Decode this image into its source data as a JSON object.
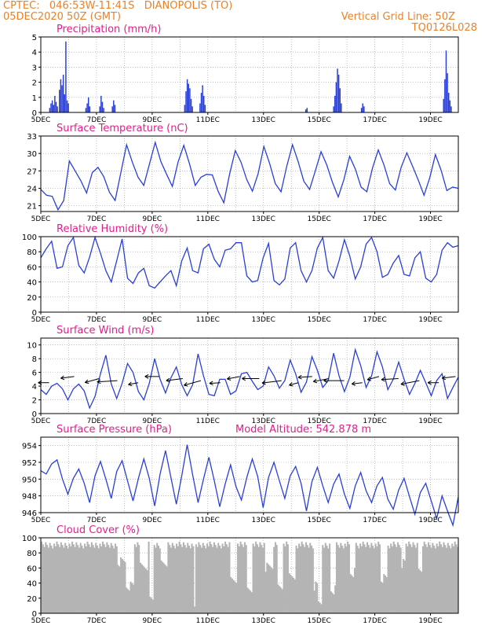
{
  "header": {
    "left_line1": "CPTEC:   046:53W-11:41S   DIANOPOLIS (TO)",
    "left_line2": "05DEC2020 50Z (GMT)",
    "right_line1": "Vertical Grid Line: 50Z",
    "right_line2": "TQ0126L028"
  },
  "colors": {
    "line": "#2a3fd6",
    "bar": "#2a3fd6",
    "cloud": "#b4b4b4",
    "title": "#e0208a",
    "header": "#e8822a"
  },
  "chart_data": [
    {
      "type": "bar",
      "title": "Precipitation (mm/h)",
      "ylim": [
        0,
        5
      ],
      "yticks": [
        0,
        1,
        2,
        3,
        4,
        5
      ],
      "xticks": [
        "5DEC",
        "7DEC",
        "9DEC",
        "11DEC",
        "13DEC",
        "15DEC",
        "17DEC",
        "19DEC"
      ],
      "x_start_day": 5,
      "x_end_day": 20,
      "events": [
        {
          "day": 5.3,
          "values": [
            0.3,
            0.6,
            0.8,
            0.5,
            1.1,
            0.7,
            0.4
          ]
        },
        {
          "day": 5.65,
          "values": [
            1.5,
            2.2,
            1.8,
            2.5,
            1.2,
            4.7,
            0.8,
            0.6
          ]
        },
        {
          "day": 6.6,
          "values": [
            0.3,
            0.6,
            1.0,
            0.4
          ]
        },
        {
          "day": 7.1,
          "values": [
            0.4,
            1.1,
            0.7,
            0.3
          ]
        },
        {
          "day": 7.55,
          "values": [
            0.4,
            0.8,
            0.5
          ]
        },
        {
          "day": 10.15,
          "values": [
            0.5,
            1.4,
            2.2,
            1.9,
            1.6,
            0.9,
            0.4
          ]
        },
        {
          "day": 10.7,
          "values": [
            0.6,
            1.3,
            1.8,
            1.1,
            0.5
          ]
        },
        {
          "day": 14.5,
          "values": [
            0.2,
            0.3
          ]
        },
        {
          "day": 15.5,
          "values": [
            0.4,
            1.1,
            2.0,
            2.9,
            2.5,
            1.6,
            0.6
          ]
        },
        {
          "day": 16.5,
          "values": [
            0.3,
            0.6,
            0.4
          ]
        },
        {
          "day": 19.45,
          "values": [
            0.9,
            2.2,
            4.1,
            2.6,
            1.3,
            0.8,
            0.4
          ]
        }
      ]
    },
    {
      "type": "line",
      "title": "Surface Temperature (nC)",
      "ylim": [
        20,
        33
      ],
      "yticks": [
        21,
        24,
        27,
        30,
        33
      ],
      "xticks": [
        "5DEC",
        "7DEC",
        "9DEC",
        "11DEC",
        "13DEC",
        "15DEC",
        "17DEC",
        "19DEC"
      ],
      "x_start_day": 5,
      "x_end_day": 20,
      "values": [
        23.8,
        22.8,
        22.6,
        20.3,
        21.9,
        28.7,
        27.0,
        25.3,
        23.2,
        26.7,
        27.6,
        26.0,
        23.3,
        21.9,
        26.7,
        31.5,
        28.5,
        25.9,
        24.5,
        28.2,
        31.9,
        28.6,
        26.4,
        24.3,
        28.5,
        31.4,
        28.2,
        24.5,
        25.9,
        26.4,
        26.3,
        23.5,
        21.5,
        26.4,
        30.5,
        28.5,
        25.5,
        23.5,
        26.5,
        31.2,
        28.3,
        24.8,
        23.4,
        27.8,
        31.5,
        28.6,
        25.2,
        23.8,
        27.0,
        30.3,
        28.0,
        25.0,
        22.5,
        25.5,
        29.5,
        27.3,
        24.2,
        23.4,
        27.5,
        30.6,
        28.0,
        24.8,
        23.7,
        27.6,
        30.1,
        27.8,
        25.4,
        22.8,
        25.8,
        29.8,
        27.1,
        23.6,
        24.2,
        24.0
      ]
    },
    {
      "type": "line",
      "title": "Relative Humidity (%)",
      "ylim": [
        0,
        100
      ],
      "yticks": [
        0,
        20,
        40,
        60,
        80,
        100
      ],
      "xticks": [
        "5DEC",
        "7DEC",
        "9DEC",
        "11DEC",
        "13DEC",
        "15DEC",
        "17DEC",
        "19DEC"
      ],
      "x_start_day": 5,
      "x_end_day": 20,
      "values": [
        72,
        84,
        94,
        58,
        60,
        88,
        99,
        62,
        52,
        73,
        99,
        78,
        55,
        40,
        68,
        97,
        45,
        38,
        52,
        58,
        35,
        32,
        40,
        48,
        55,
        35,
        68,
        85,
        55,
        52,
        84,
        90,
        70,
        60,
        82,
        84,
        92,
        92,
        48,
        40,
        42,
        72,
        91,
        42,
        36,
        44,
        85,
        92,
        55,
        40,
        55,
        85,
        99,
        55,
        45,
        68,
        96,
        74,
        44,
        60,
        90,
        99,
        80,
        46,
        50,
        65,
        75,
        50,
        48,
        72,
        80,
        45,
        40,
        50,
        82,
        92,
        86,
        88
      ]
    },
    {
      "type": "line",
      "title": "Surface Wind (m/s)",
      "ylim": [
        0,
        11
      ],
      "yticks": [
        0,
        2,
        4,
        6,
        8,
        10
      ],
      "xticks": [
        "5DEC",
        "7DEC",
        "9DEC",
        "11DEC",
        "13DEC",
        "15DEC",
        "17DEC",
        "19DEC"
      ],
      "x_start_day": 5,
      "x_end_day": 20,
      "values": [
        3.5,
        2.8,
        4.0,
        4.4,
        3.6,
        2.0,
        3.6,
        4.3,
        3.3,
        0.8,
        2.5,
        5.8,
        8.5,
        4.3,
        2.2,
        4.4,
        7.3,
        6.0,
        3.2,
        2.0,
        4.4,
        8.0,
        5.0,
        3.0,
        5.2,
        6.8,
        4.2,
        2.6,
        4.2,
        8.7,
        5.5,
        2.8,
        2.6,
        5.0,
        5.0,
        2.8,
        3.3,
        5.8,
        6.0,
        4.7,
        3.5,
        4.0,
        6.8,
        5.5,
        3.7,
        4.8,
        7.8,
        5.8,
        3.1,
        4.6,
        8.3,
        6.3,
        3.8,
        4.8,
        8.8,
        5.5,
        3.2,
        5.3,
        9.3,
        7.0,
        3.8,
        5.5,
        9.0,
        6.8,
        3.5,
        5.0,
        7.5,
        5.0,
        2.8,
        4.4,
        6.3,
        4.5,
        2.6,
        4.8,
        5.8,
        2.2,
        3.8,
        5.3
      ],
      "arrows_day": [
        5.3,
        6.2,
        7.1,
        7.75,
        8.5,
        9.25,
        10.1,
        10.75,
        11.45,
        12.15,
        12.85,
        13.65,
        14.25,
        14.75,
        15.35,
        15.9,
        16.55,
        17.15,
        17.85,
        18.6,
        19.3,
        19.9
      ]
    },
    {
      "type": "line",
      "title": "Surface Pressure (hPa)",
      "annotation": "Model Altitude: 542.878 m",
      "ylim": [
        946,
        955
      ],
      "yticks": [
        946,
        948,
        950,
        952,
        954
      ],
      "xticks": [
        "5DEC",
        "7DEC",
        "9DEC",
        "11DEC",
        "13DEC",
        "15DEC",
        "17DEC",
        "19DEC"
      ],
      "x_start_day": 5,
      "x_end_day": 20,
      "values": [
        951.0,
        950.6,
        951.8,
        952.3,
        950.0,
        948.2,
        950.1,
        951.2,
        949.5,
        947.2,
        950.4,
        952.1,
        950.0,
        947.7,
        950.9,
        952.2,
        949.8,
        947.4,
        950.1,
        952.4,
        950.1,
        946.8,
        950.6,
        953.4,
        950.2,
        947.0,
        950.4,
        954.1,
        950.5,
        947.2,
        950.0,
        952.6,
        949.8,
        946.7,
        949.4,
        951.7,
        949.1,
        947.5,
        950.2,
        952.4,
        950.3,
        946.6,
        950.2,
        952.0,
        949.8,
        947.7,
        950.4,
        951.5,
        949.5,
        946.2,
        949.7,
        951.4,
        949.2,
        947.2,
        949.4,
        950.6,
        948.2,
        946.5,
        949.2,
        950.8,
        948.6,
        947.2,
        949.2,
        950.2,
        947.6,
        946.4,
        948.7,
        950.1,
        947.9,
        945.8,
        948.4,
        949.5,
        947.4,
        945.3,
        948.0,
        946.2,
        944.5,
        947.9
      ]
    },
    {
      "type": "bar",
      "title": "Cloud Cover (%)",
      "ylim": [
        0,
        100
      ],
      "yticks": [
        0,
        20,
        40,
        60,
        80,
        100
      ],
      "xticks": [
        "5DEC",
        "7DEC",
        "9DEC",
        "11DEC",
        "13DEC",
        "15DEC",
        "17DEC",
        "19DEC"
      ],
      "x_start_day": 5,
      "x_end_day": 20,
      "base_level": 95,
      "dips": [
        {
          "day": 7.9,
          "width": 0.4,
          "value": 62
        },
        {
          "day": 8.2,
          "width": 0.3,
          "value": 30
        },
        {
          "day": 8.7,
          "width": 0.3,
          "value": 55
        },
        {
          "day": 8.95,
          "width": 0.15,
          "value": 10
        },
        {
          "day": 9.4,
          "width": 0.3,
          "value": 60
        },
        {
          "day": 10.5,
          "width": 0.08,
          "value": 5
        },
        {
          "day": 11.9,
          "width": 0.3,
          "value": 40
        },
        {
          "day": 12.5,
          "width": 0.2,
          "value": 22
        },
        {
          "day": 13.2,
          "width": 0.3,
          "value": 55
        },
        {
          "day": 13.6,
          "width": 0.2,
          "value": 28
        },
        {
          "day": 14.0,
          "width": 0.2,
          "value": 45
        },
        {
          "day": 14.9,
          "width": 0.2,
          "value": 30
        },
        {
          "day": 15.0,
          "width": 0.12,
          "value": 8
        },
        {
          "day": 15.5,
          "width": 0.2,
          "value": 25
        },
        {
          "day": 16.2,
          "width": 0.2,
          "value": 48
        },
        {
          "day": 17.3,
          "width": 0.2,
          "value": 40
        },
        {
          "day": 18.0,
          "width": 0.2,
          "value": 60
        },
        {
          "day": 18.6,
          "width": 0.2,
          "value": 55
        }
      ]
    }
  ]
}
